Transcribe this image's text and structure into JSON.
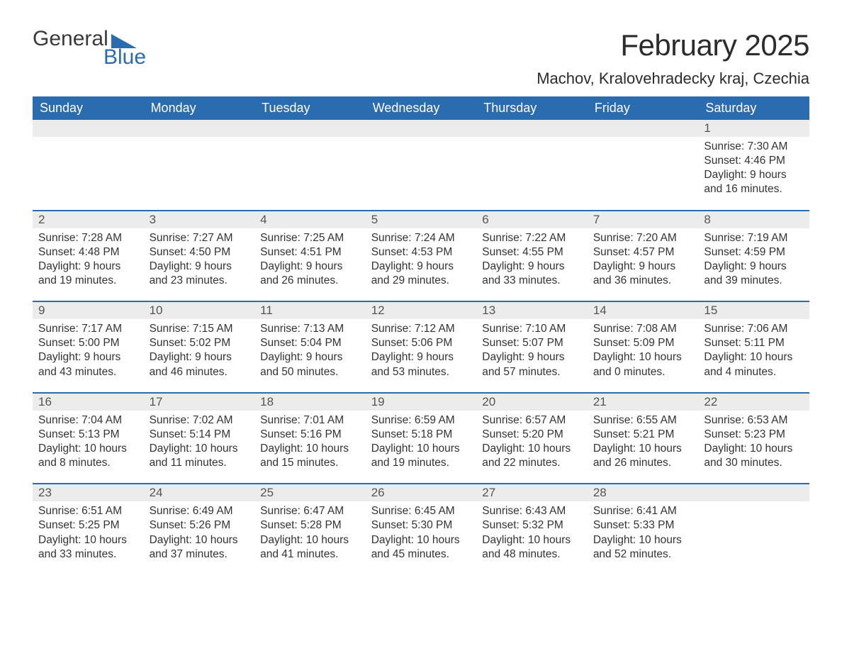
{
  "logo": {
    "part1": "General",
    "part2": "Blue"
  },
  "title": "February 2025",
  "location": "Machov, Kralovehradecky kraj, Czechia",
  "colors": {
    "header_bg": "#2b6cb0",
    "header_text": "#ffffff",
    "daynum_bg": "#ececec",
    "row_border": "#2b6cb0",
    "body_text": "#333333",
    "page_bg": "#ffffff"
  },
  "weekdays": [
    "Sunday",
    "Monday",
    "Tuesday",
    "Wednesday",
    "Thursday",
    "Friday",
    "Saturday"
  ],
  "weeks": [
    [
      null,
      null,
      null,
      null,
      null,
      null,
      {
        "d": "1",
        "sr": "7:30 AM",
        "ss": "4:46 PM",
        "dl": "9 hours and 16 minutes."
      }
    ],
    [
      {
        "d": "2",
        "sr": "7:28 AM",
        "ss": "4:48 PM",
        "dl": "9 hours and 19 minutes."
      },
      {
        "d": "3",
        "sr": "7:27 AM",
        "ss": "4:50 PM",
        "dl": "9 hours and 23 minutes."
      },
      {
        "d": "4",
        "sr": "7:25 AM",
        "ss": "4:51 PM",
        "dl": "9 hours and 26 minutes."
      },
      {
        "d": "5",
        "sr": "7:24 AM",
        "ss": "4:53 PM",
        "dl": "9 hours and 29 minutes."
      },
      {
        "d": "6",
        "sr": "7:22 AM",
        "ss": "4:55 PM",
        "dl": "9 hours and 33 minutes."
      },
      {
        "d": "7",
        "sr": "7:20 AM",
        "ss": "4:57 PM",
        "dl": "9 hours and 36 minutes."
      },
      {
        "d": "8",
        "sr": "7:19 AM",
        "ss": "4:59 PM",
        "dl": "9 hours and 39 minutes."
      }
    ],
    [
      {
        "d": "9",
        "sr": "7:17 AM",
        "ss": "5:00 PM",
        "dl": "9 hours and 43 minutes."
      },
      {
        "d": "10",
        "sr": "7:15 AM",
        "ss": "5:02 PM",
        "dl": "9 hours and 46 minutes."
      },
      {
        "d": "11",
        "sr": "7:13 AM",
        "ss": "5:04 PM",
        "dl": "9 hours and 50 minutes."
      },
      {
        "d": "12",
        "sr": "7:12 AM",
        "ss": "5:06 PM",
        "dl": "9 hours and 53 minutes."
      },
      {
        "d": "13",
        "sr": "7:10 AM",
        "ss": "5:07 PM",
        "dl": "9 hours and 57 minutes."
      },
      {
        "d": "14",
        "sr": "7:08 AM",
        "ss": "5:09 PM",
        "dl": "10 hours and 0 minutes."
      },
      {
        "d": "15",
        "sr": "7:06 AM",
        "ss": "5:11 PM",
        "dl": "10 hours and 4 minutes."
      }
    ],
    [
      {
        "d": "16",
        "sr": "7:04 AM",
        "ss": "5:13 PM",
        "dl": "10 hours and 8 minutes."
      },
      {
        "d": "17",
        "sr": "7:02 AM",
        "ss": "5:14 PM",
        "dl": "10 hours and 11 minutes."
      },
      {
        "d": "18",
        "sr": "7:01 AM",
        "ss": "5:16 PM",
        "dl": "10 hours and 15 minutes."
      },
      {
        "d": "19",
        "sr": "6:59 AM",
        "ss": "5:18 PM",
        "dl": "10 hours and 19 minutes."
      },
      {
        "d": "20",
        "sr": "6:57 AM",
        "ss": "5:20 PM",
        "dl": "10 hours and 22 minutes."
      },
      {
        "d": "21",
        "sr": "6:55 AM",
        "ss": "5:21 PM",
        "dl": "10 hours and 26 minutes."
      },
      {
        "d": "22",
        "sr": "6:53 AM",
        "ss": "5:23 PM",
        "dl": "10 hours and 30 minutes."
      }
    ],
    [
      {
        "d": "23",
        "sr": "6:51 AM",
        "ss": "5:25 PM",
        "dl": "10 hours and 33 minutes."
      },
      {
        "d": "24",
        "sr": "6:49 AM",
        "ss": "5:26 PM",
        "dl": "10 hours and 37 minutes."
      },
      {
        "d": "25",
        "sr": "6:47 AM",
        "ss": "5:28 PM",
        "dl": "10 hours and 41 minutes."
      },
      {
        "d": "26",
        "sr": "6:45 AM",
        "ss": "5:30 PM",
        "dl": "10 hours and 45 minutes."
      },
      {
        "d": "27",
        "sr": "6:43 AM",
        "ss": "5:32 PM",
        "dl": "10 hours and 48 minutes."
      },
      {
        "d": "28",
        "sr": "6:41 AM",
        "ss": "5:33 PM",
        "dl": "10 hours and 52 minutes."
      },
      null
    ]
  ],
  "labels": {
    "sunrise": "Sunrise: ",
    "sunset": "Sunset: ",
    "daylight": "Daylight: "
  }
}
